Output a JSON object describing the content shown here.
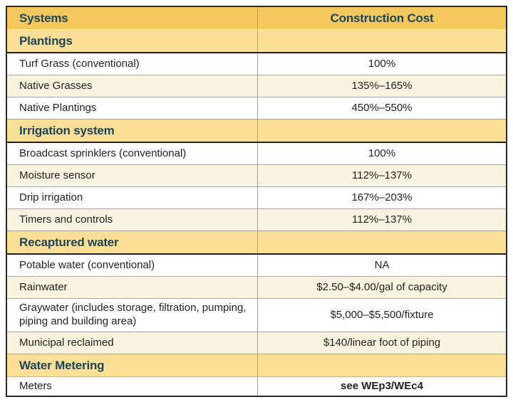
{
  "chart_data": {
    "type": "table",
    "columns": [
      "Systems",
      "Construction Cost"
    ],
    "sections": [
      {
        "title": "Plantings",
        "rows": [
          {
            "system": "Turf Grass (conventional)",
            "cost": "100%"
          },
          {
            "system": "Native Grasses",
            "cost": "135%–165%"
          },
          {
            "system": "Native Plantings",
            "cost": "450%–550%"
          }
        ]
      },
      {
        "title": "Irrigation system",
        "rows": [
          {
            "system": "Broadcast sprinklers (conventional)",
            "cost": "100%"
          },
          {
            "system": "Moisture sensor",
            "cost": "112%–137%"
          },
          {
            "system": "Drip irrigation",
            "cost": "167%–203%"
          },
          {
            "system": "Timers and controls",
            "cost": "112%–137%"
          }
        ]
      },
      {
        "title": "Recaptured water",
        "rows": [
          {
            "system": "Potable water (conventional)",
            "cost": "NA"
          },
          {
            "system": "Rainwater",
            "cost": "$2.50–$4.00/gal of capacity"
          },
          {
            "system": "Graywater (includes storage, filtration, pumping, piping and building area)",
            "cost": "$5,000–$5,500/fixture"
          },
          {
            "system": "Municipal reclaimed",
            "cost": "$140/linear foot of piping"
          }
        ]
      },
      {
        "title": "Water Metering",
        "rows": [
          {
            "system": "Meters",
            "cost": "see WEp3/WEc4"
          }
        ]
      }
    ],
    "layout": {
      "column_1_align": "left",
      "column_2_align": "center",
      "row_striping": "alternating white and cream per section"
    }
  },
  "colors": {
    "header_bg": "#f5c85e",
    "section_bg": "#fbdf97",
    "row_cream_bg": "#f8f2de",
    "row_white_bg": "#ffffff",
    "heading_text": "#1d4559",
    "body_text": "#231f20",
    "border_dark": "#29282a",
    "border_gray": "#a3a39f"
  }
}
